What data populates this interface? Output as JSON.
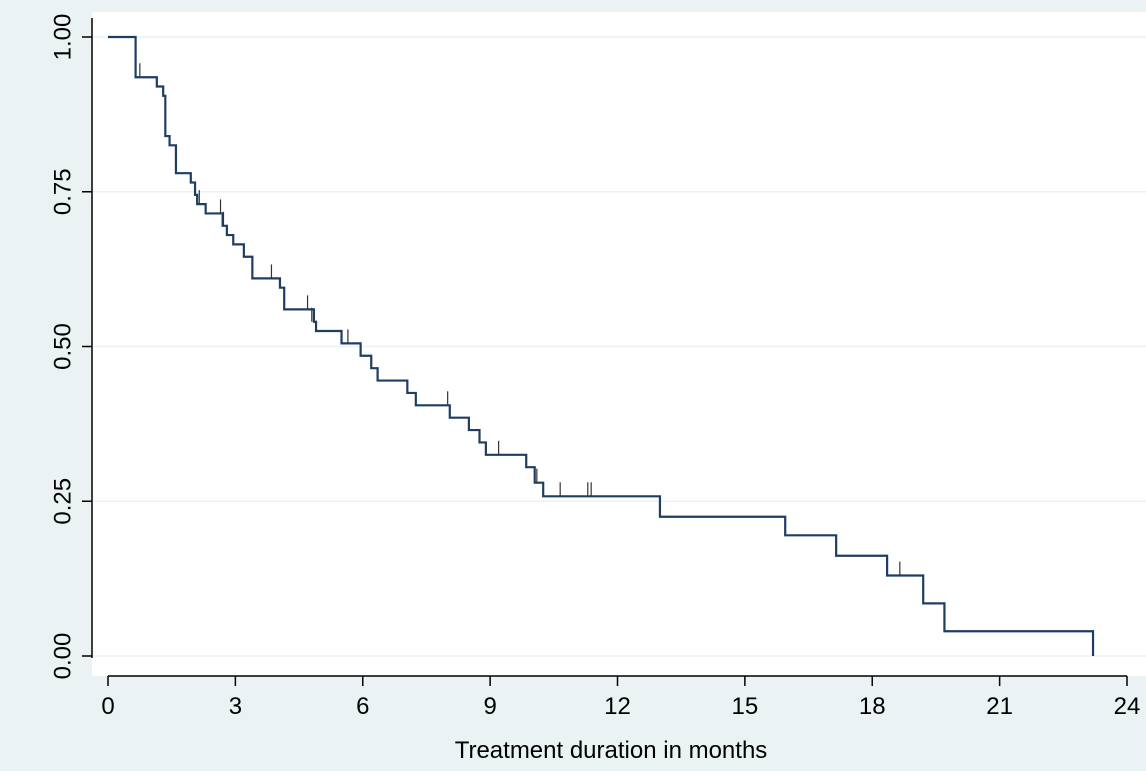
{
  "chart_data": {
    "type": "line",
    "title": "",
    "xlabel": "Treatment duration in months",
    "ylabel": "",
    "xlim": [
      0,
      24
    ],
    "ylim": [
      0,
      1
    ],
    "x_ticks": [
      "0",
      "3",
      "6",
      "9",
      "12",
      "15",
      "18",
      "21",
      "24"
    ],
    "x_tick_values": [
      0,
      3,
      6,
      9,
      12,
      15,
      18,
      21,
      24
    ],
    "y_ticks": [
      "0.00",
      "0.25",
      "0.50",
      "0.75",
      "1.00"
    ],
    "y_tick_values": [
      0,
      0.25,
      0.5,
      0.75,
      1
    ],
    "grid": "horizontal",
    "colors": {
      "line": "#1f3d63",
      "plot_bg": "#ffffff",
      "outer_bg": "#eaf2f3",
      "grid": "#eaf2f3",
      "axis": "#000000"
    },
    "series": [
      {
        "steps": [
          [
            0,
            1.0
          ],
          [
            0.65,
            0.935
          ],
          [
            1.15,
            0.92
          ],
          [
            1.3,
            0.905
          ],
          [
            1.35,
            0.84
          ],
          [
            1.45,
            0.825
          ],
          [
            1.6,
            0.78
          ],
          [
            1.95,
            0.765
          ],
          [
            2.05,
            0.745
          ],
          [
            2.1,
            0.73
          ],
          [
            2.3,
            0.715
          ],
          [
            2.7,
            0.695
          ],
          [
            2.8,
            0.68
          ],
          [
            2.95,
            0.665
          ],
          [
            3.2,
            0.645
          ],
          [
            3.4,
            0.61
          ],
          [
            4.05,
            0.595
          ],
          [
            4.15,
            0.56
          ],
          [
            4.85,
            0.54
          ],
          [
            4.9,
            0.525
          ],
          [
            5.5,
            0.505
          ],
          [
            5.95,
            0.485
          ],
          [
            6.2,
            0.465
          ],
          [
            6.35,
            0.445
          ],
          [
            7.05,
            0.425
          ],
          [
            7.25,
            0.405
          ],
          [
            8.05,
            0.385
          ],
          [
            8.5,
            0.365
          ],
          [
            8.75,
            0.345
          ],
          [
            8.9,
            0.325
          ],
          [
            9.85,
            0.305
          ],
          [
            10.05,
            0.28
          ],
          [
            10.25,
            0.258
          ],
          [
            13.0,
            0.225
          ],
          [
            15.95,
            0.195
          ],
          [
            17.15,
            0.162
          ],
          [
            18.35,
            0.13
          ],
          [
            19.2,
            0.085
          ],
          [
            19.7,
            0.04
          ],
          [
            23.2,
            0.0
          ]
        ],
        "censored": [
          [
            0.75,
            0.935
          ],
          [
            2.15,
            0.73
          ],
          [
            2.65,
            0.715
          ],
          [
            2.72,
            0.695
          ],
          [
            3.85,
            0.61
          ],
          [
            4.7,
            0.56
          ],
          [
            4.8,
            0.54
          ],
          [
            5.65,
            0.505
          ],
          [
            8.0,
            0.405
          ],
          [
            9.2,
            0.325
          ],
          [
            10.1,
            0.28
          ],
          [
            10.65,
            0.258
          ],
          [
            11.3,
            0.258
          ],
          [
            11.38,
            0.258
          ],
          [
            18.65,
            0.13
          ]
        ]
      }
    ]
  }
}
